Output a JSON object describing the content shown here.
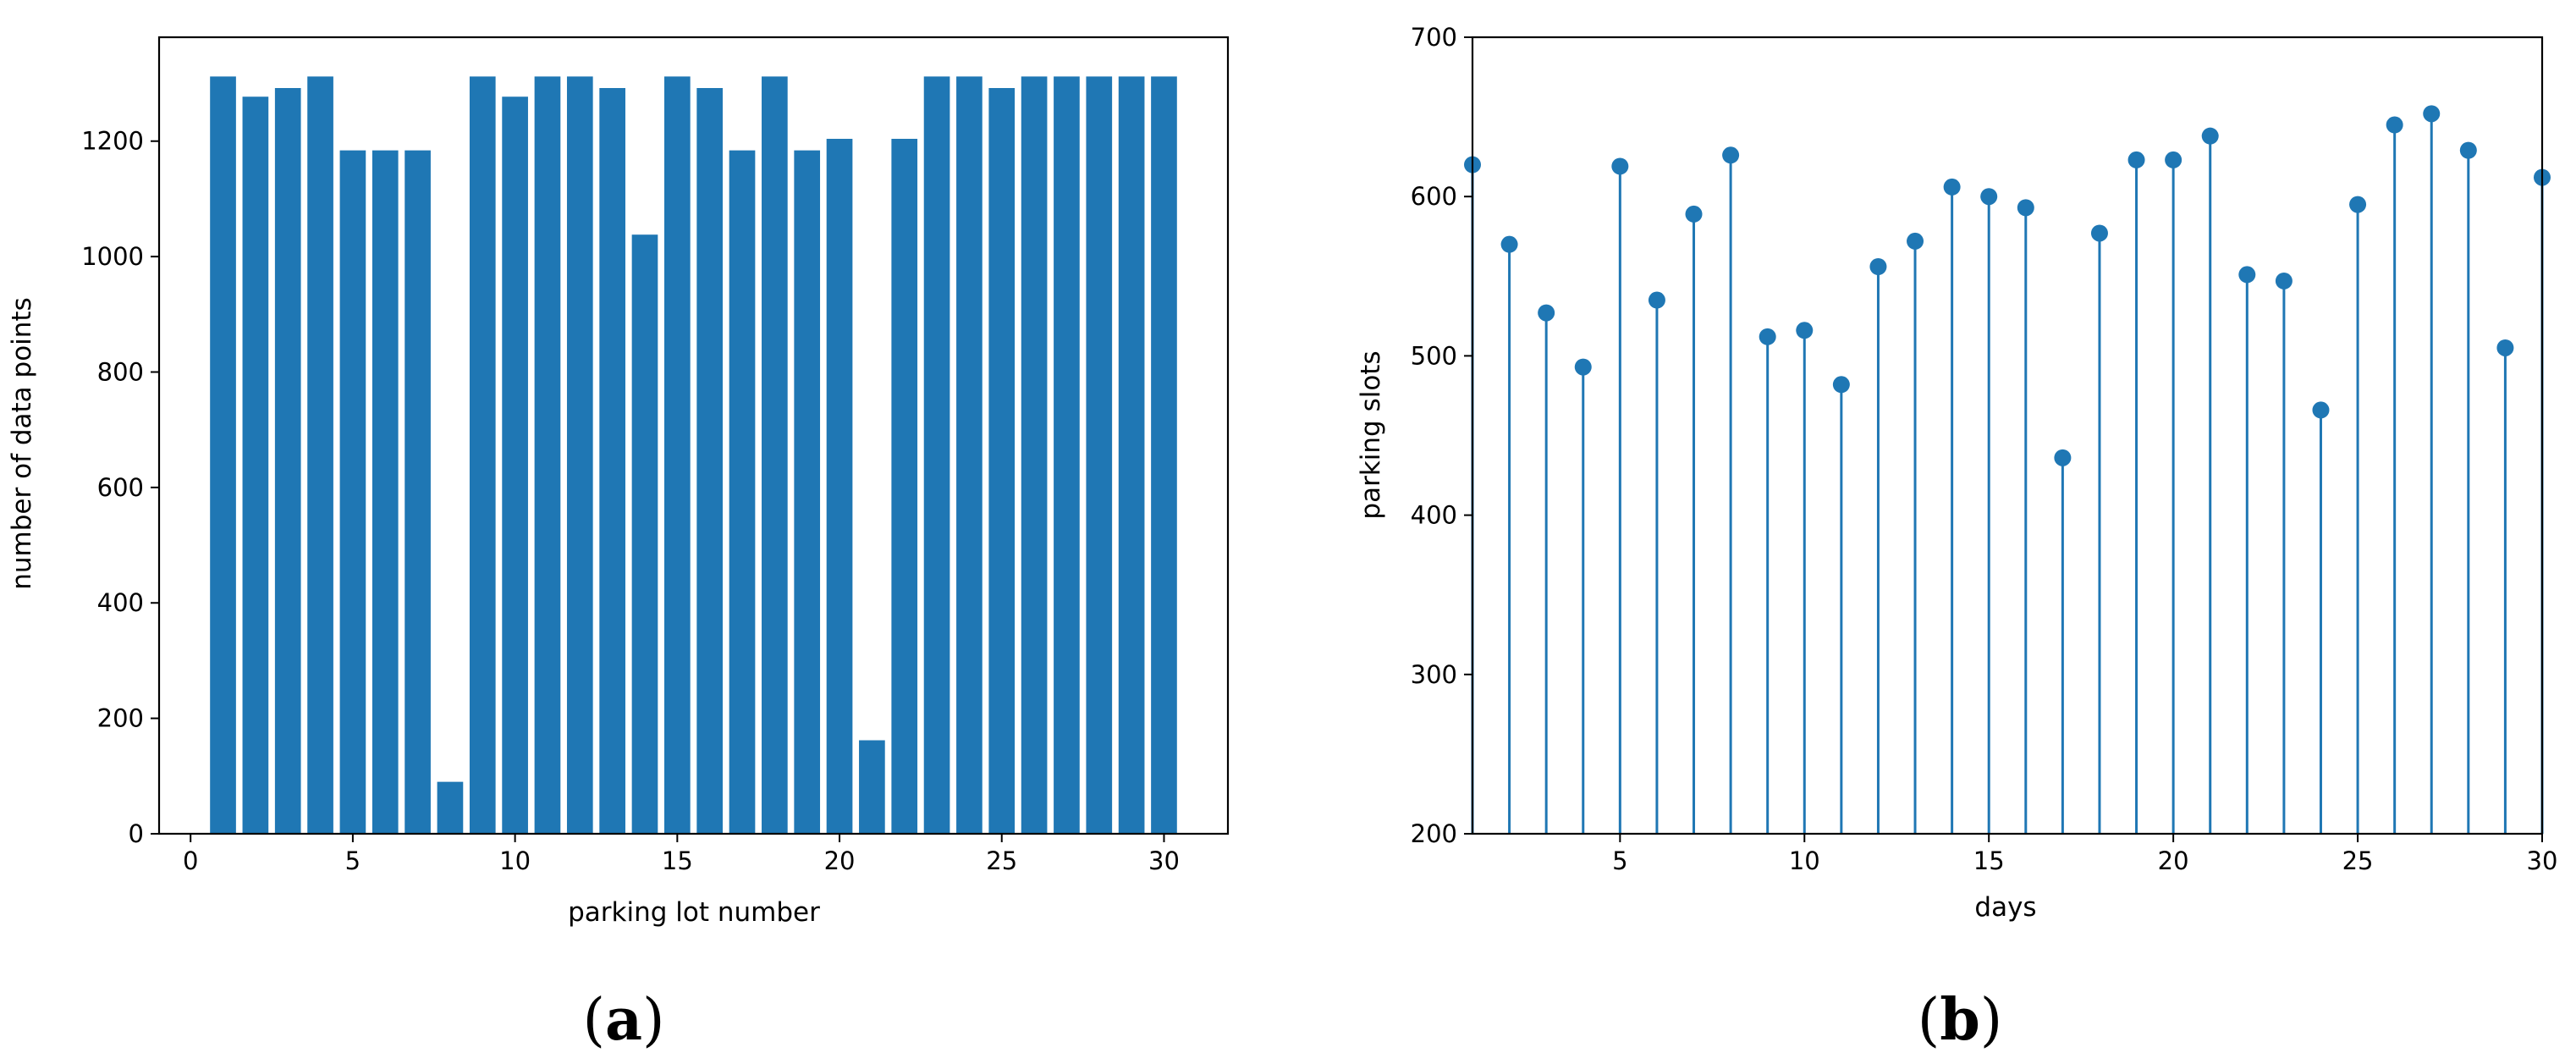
{
  "panels": [
    {
      "caption_open": "(",
      "caption_letter": "a",
      "caption_close": ")"
    },
    {
      "caption_open": "(",
      "caption_letter": "b",
      "caption_close": ")"
    }
  ],
  "chart_data": [
    {
      "type": "bar",
      "xlabel": "parking lot number",
      "ylabel": "number of data points",
      "color": "#1f77b4",
      "xlim": [
        -0.97,
        31.97
      ],
      "ylim": [
        0,
        1380
      ],
      "xticks": [
        0,
        5,
        10,
        15,
        20,
        25,
        30
      ],
      "yticks": [
        0,
        200,
        400,
        600,
        800,
        1000,
        1200
      ],
      "x": [
        1,
        2,
        3,
        4,
        5,
        6,
        7,
        8,
        9,
        10,
        11,
        12,
        13,
        14,
        15,
        16,
        17,
        18,
        19,
        20,
        21,
        22,
        23,
        24,
        25,
        26,
        27,
        28,
        29,
        30
      ],
      "values": [
        1312,
        1277,
        1292,
        1312,
        1184,
        1184,
        1184,
        90,
        1312,
        1277,
        1312,
        1312,
        1292,
        1038,
        1312,
        1292,
        1184,
        1312,
        1184,
        1204,
        162,
        1204,
        1312,
        1312,
        1292,
        1312,
        1312,
        1312,
        1312,
        1312
      ],
      "bar_width": 0.8
    },
    {
      "type": "scatter",
      "style": "stem",
      "xlabel": "days",
      "ylabel": "parking slots",
      "color": "#1f77b4",
      "xlim": [
        1,
        30
      ],
      "ylim": [
        200,
        700
      ],
      "xticks": [
        5,
        10,
        15,
        20,
        25,
        30
      ],
      "yticks": [
        200,
        300,
        400,
        500,
        600,
        700
      ],
      "x": [
        1,
        2,
        3,
        4,
        5,
        6,
        7,
        8,
        9,
        10,
        11,
        12,
        13,
        14,
        15,
        16,
        17,
        18,
        19,
        20,
        21,
        22,
        23,
        24,
        25,
        26,
        27,
        28,
        29,
        30
      ],
      "values": [
        620,
        570,
        527,
        493,
        619,
        535,
        589,
        626,
        512,
        516,
        482,
        556,
        572,
        606,
        600,
        593,
        436,
        577,
        623,
        623,
        638,
        551,
        547,
        466,
        595,
        645,
        652,
        629,
        505,
        612
      ]
    }
  ]
}
